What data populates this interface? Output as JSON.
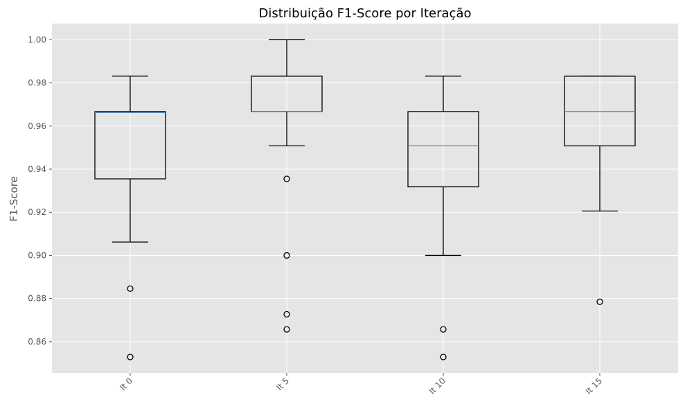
{
  "chart_data": {
    "type": "boxplot",
    "title": "Distribuição F1-Score por Iteração",
    "xlabel": "",
    "ylabel": "F1-Score",
    "ylim": [
      0.8455,
      1.0075
    ],
    "yticks": [
      0.86,
      0.88,
      0.9,
      0.92,
      0.94,
      0.96,
      0.98,
      1.0
    ],
    "ytick_labels": [
      "0.86",
      "0.88",
      "0.90",
      "0.92",
      "0.94",
      "0.96",
      "0.98",
      "1.00"
    ],
    "grid": true,
    "categories": [
      "It 0",
      "It 5",
      "It 10",
      "It 15"
    ],
    "boxes": [
      {
        "whisker_low": 0.9062,
        "q1": 0.9355,
        "median": 0.9663,
        "q3": 0.9667,
        "whisker_high": 0.9831,
        "outliers": [
          0.8846,
          0.8529
        ]
      },
      {
        "whisker_low": 0.9508,
        "q1": 0.9667,
        "median": 0.9667,
        "q3": 0.9831,
        "whisker_high": 1.0,
        "outliers": [
          0.9355,
          0.9,
          0.8727,
          0.8657
        ]
      },
      {
        "whisker_low": 0.9,
        "q1": 0.9318,
        "median": 0.9508,
        "q3": 0.9667,
        "whisker_high": 0.9831,
        "outliers": [
          0.8657,
          0.8529
        ]
      },
      {
        "whisker_low": 0.9206,
        "q1": 0.9508,
        "median": 0.9667,
        "q3": 0.9831,
        "whisker_high": 0.9831,
        "outliers": [
          0.8785
        ]
      }
    ],
    "colors": {
      "plot_background": "#E5E5E5",
      "grid": "#FFFFFF",
      "box": "#000000",
      "median": "#4F82B7",
      "tick_text": "#555555"
    }
  }
}
